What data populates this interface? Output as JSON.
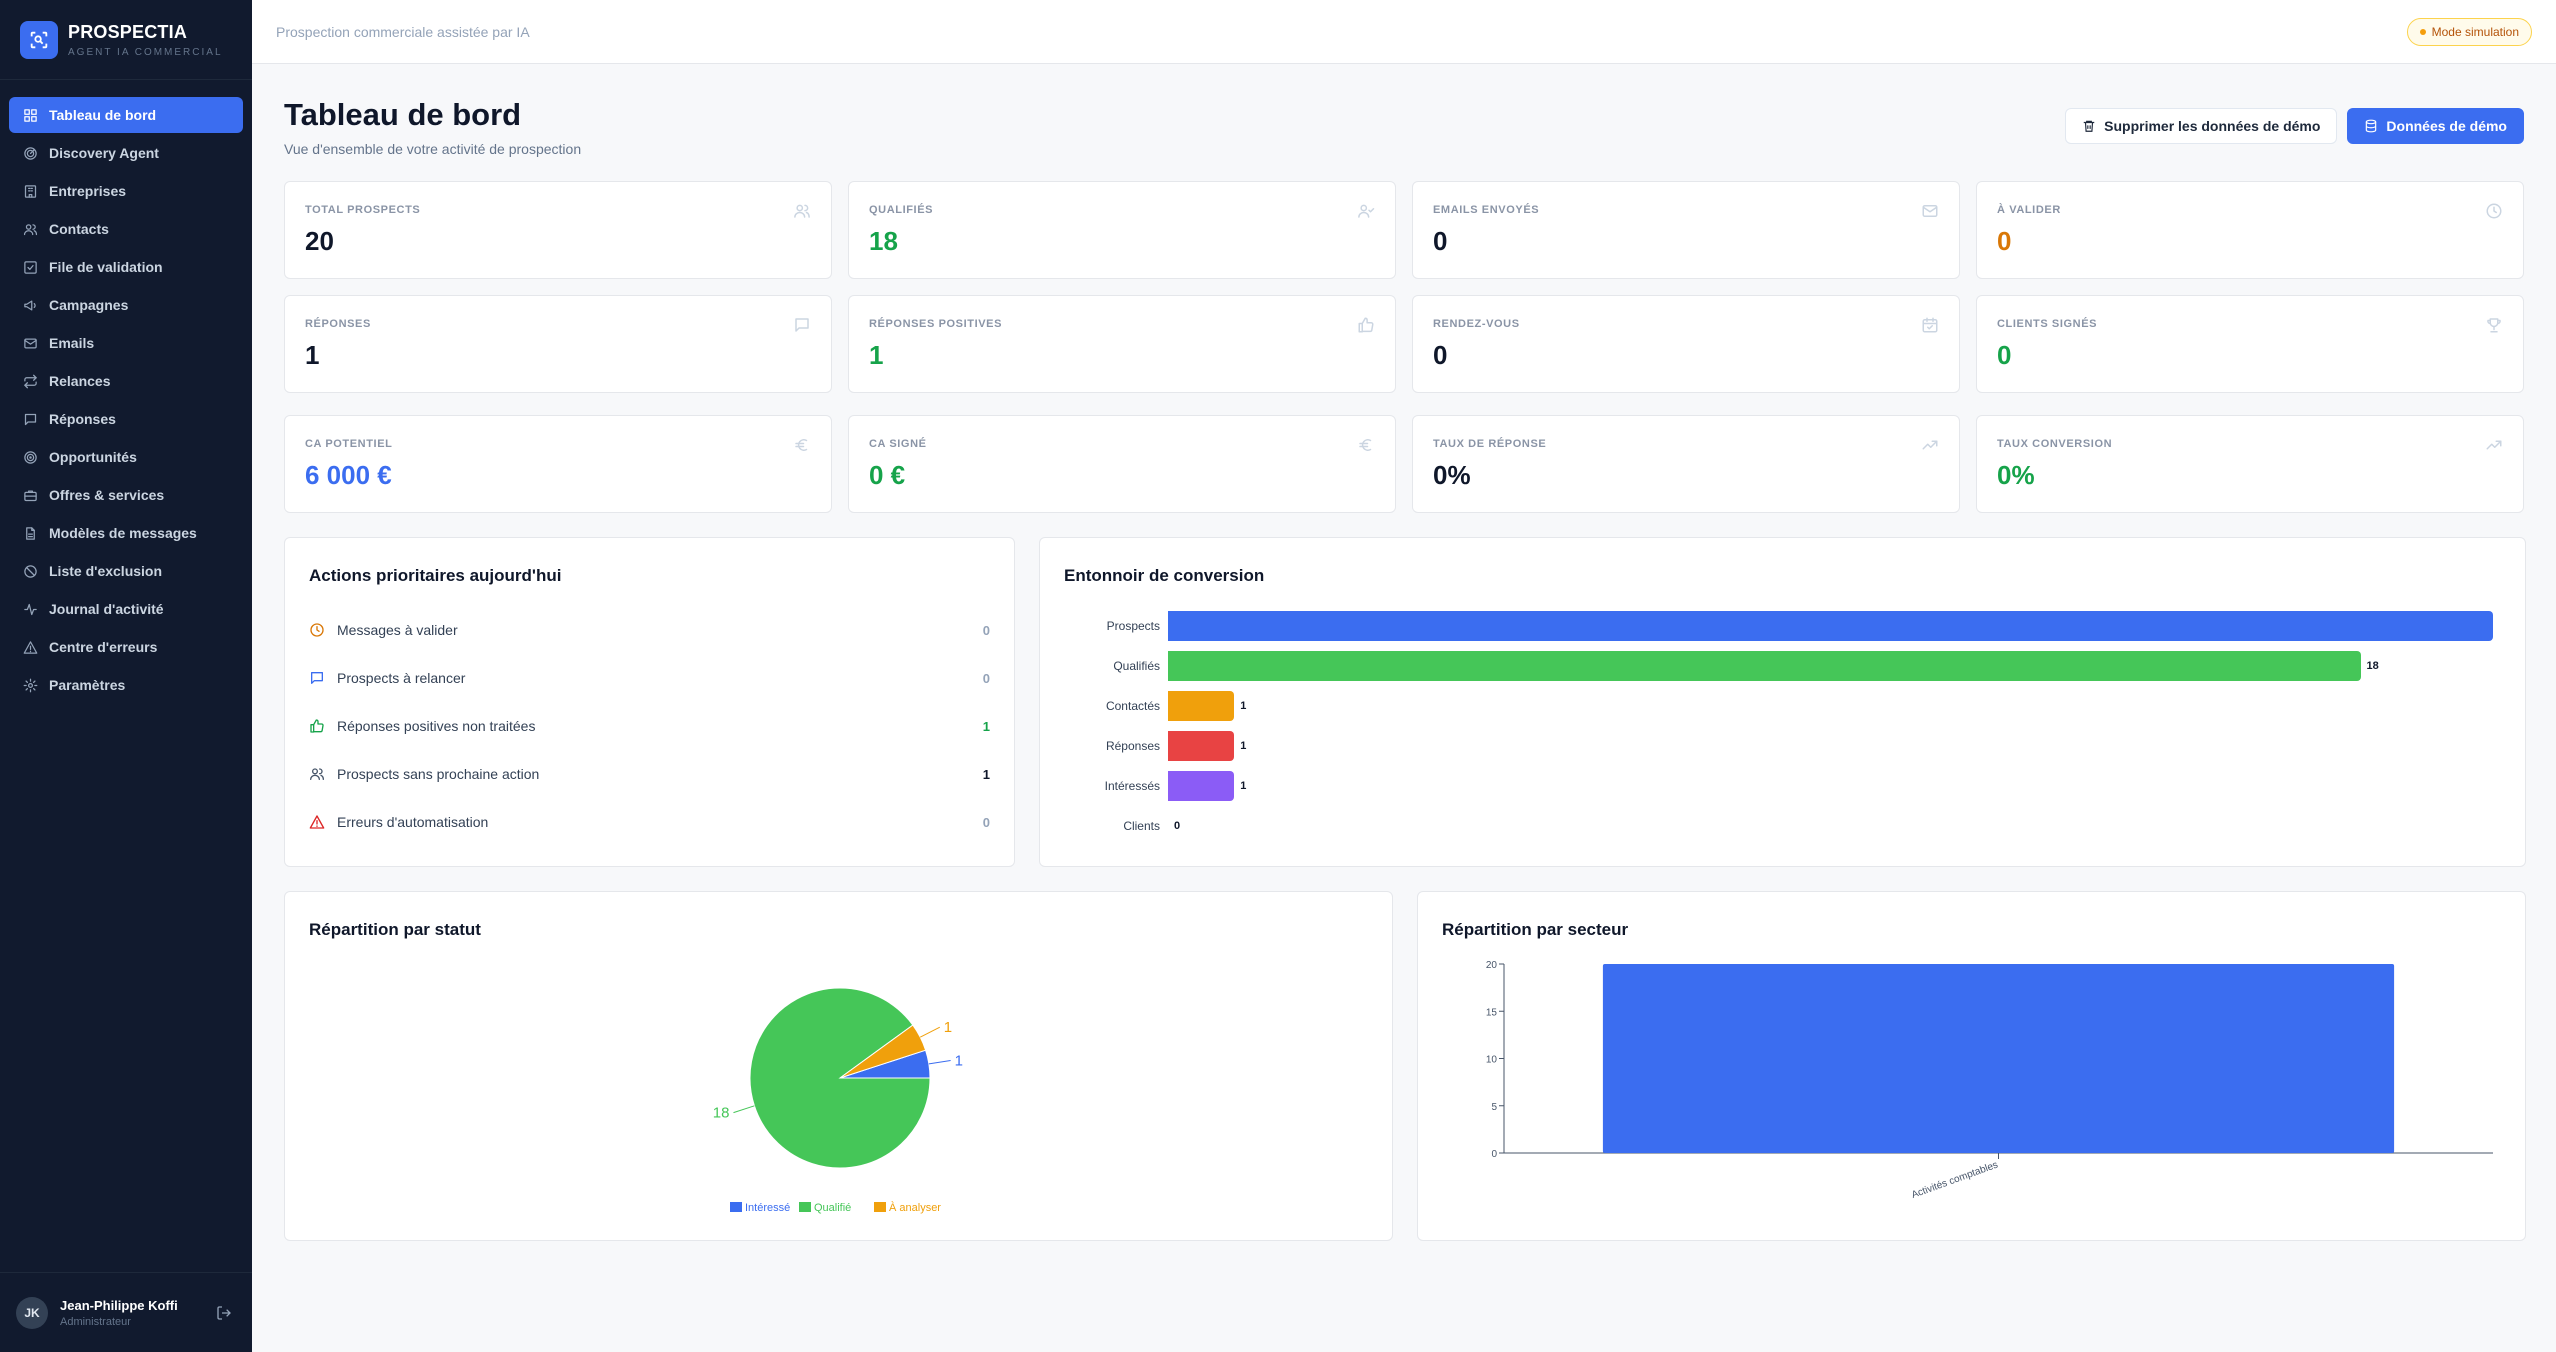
{
  "brand": {
    "name": "PROSPECTIA",
    "subtitle": "AGENT IA COMMERCIAL"
  },
  "sidebar": {
    "items": [
      {
        "label": "Tableau de bord",
        "icon": "grid-icon",
        "active": true
      },
      {
        "label": "Discovery Agent",
        "icon": "radar-icon"
      },
      {
        "label": "Entreprises",
        "icon": "building-icon"
      },
      {
        "label": "Contacts",
        "icon": "users-icon"
      },
      {
        "label": "File de validation",
        "icon": "check-square-icon"
      },
      {
        "label": "Campagnes",
        "icon": "megaphone-icon"
      },
      {
        "label": "Emails",
        "icon": "mail-icon"
      },
      {
        "label": "Relances",
        "icon": "repeat-icon"
      },
      {
        "label": "Réponses",
        "icon": "message-icon"
      },
      {
        "label": "Opportunités",
        "icon": "target-icon"
      },
      {
        "label": "Offres & services",
        "icon": "briefcase-icon"
      },
      {
        "label": "Modèles de messages",
        "icon": "file-text-icon"
      },
      {
        "label": "Liste d'exclusion",
        "icon": "ban-icon"
      },
      {
        "label": "Journal d'activité",
        "icon": "activity-icon"
      },
      {
        "label": "Centre d'erreurs",
        "icon": "alert-triangle-icon"
      },
      {
        "label": "Paramètres",
        "icon": "settings-icon"
      }
    ]
  },
  "user": {
    "initials": "JK",
    "name": "Jean-Philippe Koffi",
    "role": "Administrateur"
  },
  "topbar": {
    "subtitle": "Prospection commerciale assistée par IA",
    "badge": "Mode simulation"
  },
  "header": {
    "title": "Tableau de bord",
    "subtitle": "Vue d'ensemble de votre activité de prospection",
    "delete_button": "Supprimer les données de démo",
    "demo_button": "Données de démo"
  },
  "stats": [
    {
      "label": "TOTAL PROSPECTS",
      "value": "20",
      "color": "#0f172a",
      "icon": "users-icon"
    },
    {
      "label": "QUALIFIÉS",
      "value": "18",
      "color": "#16a34a",
      "icon": "user-check-icon"
    },
    {
      "label": "EMAILS ENVOYÉS",
      "value": "0",
      "color": "#0f172a",
      "icon": "mail-icon"
    },
    {
      "label": "À VALIDER",
      "value": "0",
      "color": "#d97706",
      "icon": "clock-icon"
    },
    {
      "label": "RÉPONSES",
      "value": "1",
      "color": "#0f172a",
      "icon": "message-icon"
    },
    {
      "label": "RÉPONSES POSITIVES",
      "value": "1",
      "color": "#16a34a",
      "icon": "thumbs-up-icon"
    },
    {
      "label": "RENDEZ-VOUS",
      "value": "0",
      "color": "#0f172a",
      "icon": "calendar-icon"
    },
    {
      "label": "CLIENTS SIGNÉS",
      "value": "0",
      "color": "#16a34a",
      "icon": "trophy-icon"
    },
    {
      "label": "CA POTENTIEL",
      "value": "6 000 €",
      "color": "#3b6df0",
      "icon": "euro-icon"
    },
    {
      "label": "CA SIGNÉ",
      "value": "0 €",
      "color": "#16a34a",
      "icon": "euro-icon"
    },
    {
      "label": "TAUX DE RÉPONSE",
      "value": "0%",
      "color": "#0f172a",
      "icon": "trending-up-icon"
    },
    {
      "label": "TAUX CONVERSION",
      "value": "0%",
      "color": "#16a34a",
      "icon": "trending-up-icon"
    }
  ],
  "priority": {
    "title": "Actions prioritaires aujourd'hui",
    "items": [
      {
        "label": "Messages à valider",
        "count": "0",
        "icon": "clock-icon",
        "icon_color": "#d97706",
        "count_color": "#94a3b8"
      },
      {
        "label": "Prospects à relancer",
        "count": "0",
        "icon": "message-icon",
        "icon_color": "#3b6df0",
        "count_color": "#94a3b8"
      },
      {
        "label": "Réponses positives non traitées",
        "count": "1",
        "icon": "thumbs-up-icon",
        "icon_color": "#16a34a",
        "count_color": "#16a34a"
      },
      {
        "label": "Prospects sans prochaine action",
        "count": "1",
        "icon": "users-icon",
        "icon_color": "#475569",
        "count_color": "#0f172a"
      },
      {
        "label": "Erreurs d'automatisation",
        "count": "0",
        "icon": "alert-triangle-icon",
        "icon_color": "#dc2626",
        "count_color": "#94a3b8"
      }
    ]
  },
  "funnel": {
    "title": "Entonnoir de conversion",
    "max": 20,
    "stages": [
      {
        "label": "Prospects",
        "value": 20,
        "show_value": false,
        "color": "#3b6df0"
      },
      {
        "label": "Qualifiés",
        "value": 18,
        "show_value": true,
        "color": "#45c658"
      },
      {
        "label": "Contactés",
        "value": 1,
        "show_value": true,
        "color": "#f0a00c"
      },
      {
        "label": "Réponses",
        "value": 1,
        "show_value": true,
        "color": "#e84343"
      },
      {
        "label": "Intéressés",
        "value": 1,
        "show_value": true,
        "color": "#8b5cf6"
      },
      {
        "label": "Clients",
        "value": 0,
        "show_value": true,
        "color": "#14b8a6"
      }
    ]
  },
  "chart_data": [
    {
      "type": "pie",
      "title": "Répartition par statut",
      "slices": [
        {
          "label": "Intéressé",
          "value": 1,
          "color": "#3b6df0"
        },
        {
          "label": "Qualifié",
          "value": 18,
          "color": "#45c658"
        },
        {
          "label": "À analyser",
          "value": 1,
          "color": "#f0a00c"
        }
      ],
      "legend": "bottom"
    },
    {
      "type": "bar",
      "title": "Répartition par secteur",
      "categories": [
        "Activités comptables"
      ],
      "values": [
        20
      ],
      "ylim": [
        0,
        20
      ],
      "yticks": [
        0,
        5,
        10,
        15,
        20
      ],
      "color": "#3b6df0"
    }
  ]
}
